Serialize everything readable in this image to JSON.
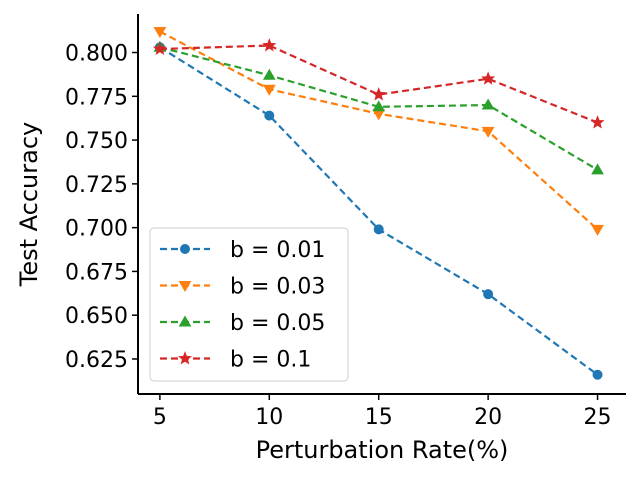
{
  "chart_data": {
    "type": "line",
    "xlabel": "Perturbation Rate(%)",
    "ylabel": "Test Accuracy",
    "x": [
      5,
      10,
      15,
      20,
      25
    ],
    "xticks": [
      "5",
      "10",
      "15",
      "20",
      "25"
    ],
    "yticks": [
      "0.625",
      "0.650",
      "0.675",
      "0.700",
      "0.725",
      "0.750",
      "0.775",
      "0.800"
    ],
    "xlim": [
      4.0,
      26.3
    ],
    "ylim": [
      0.605,
      0.822
    ],
    "grid": false,
    "legend_position": "lower-left",
    "series": [
      {
        "name": "b = 0.01",
        "color": "#1f77b4",
        "marker": "circle",
        "values": [
          0.803,
          0.764,
          0.699,
          0.662,
          0.616
        ]
      },
      {
        "name": "b = 0.03",
        "color": "#ff7f0e",
        "marker": "triangle-down",
        "values": [
          0.812,
          0.779,
          0.765,
          0.755,
          0.699
        ]
      },
      {
        "name": "b = 0.05",
        "color": "#2ca02c",
        "marker": "triangle-up",
        "values": [
          0.803,
          0.787,
          0.769,
          0.77,
          0.733
        ]
      },
      {
        "name": "b = 0.1",
        "color": "#d62728",
        "marker": "star",
        "values": [
          0.802,
          0.804,
          0.776,
          0.785,
          0.76
        ]
      }
    ]
  }
}
